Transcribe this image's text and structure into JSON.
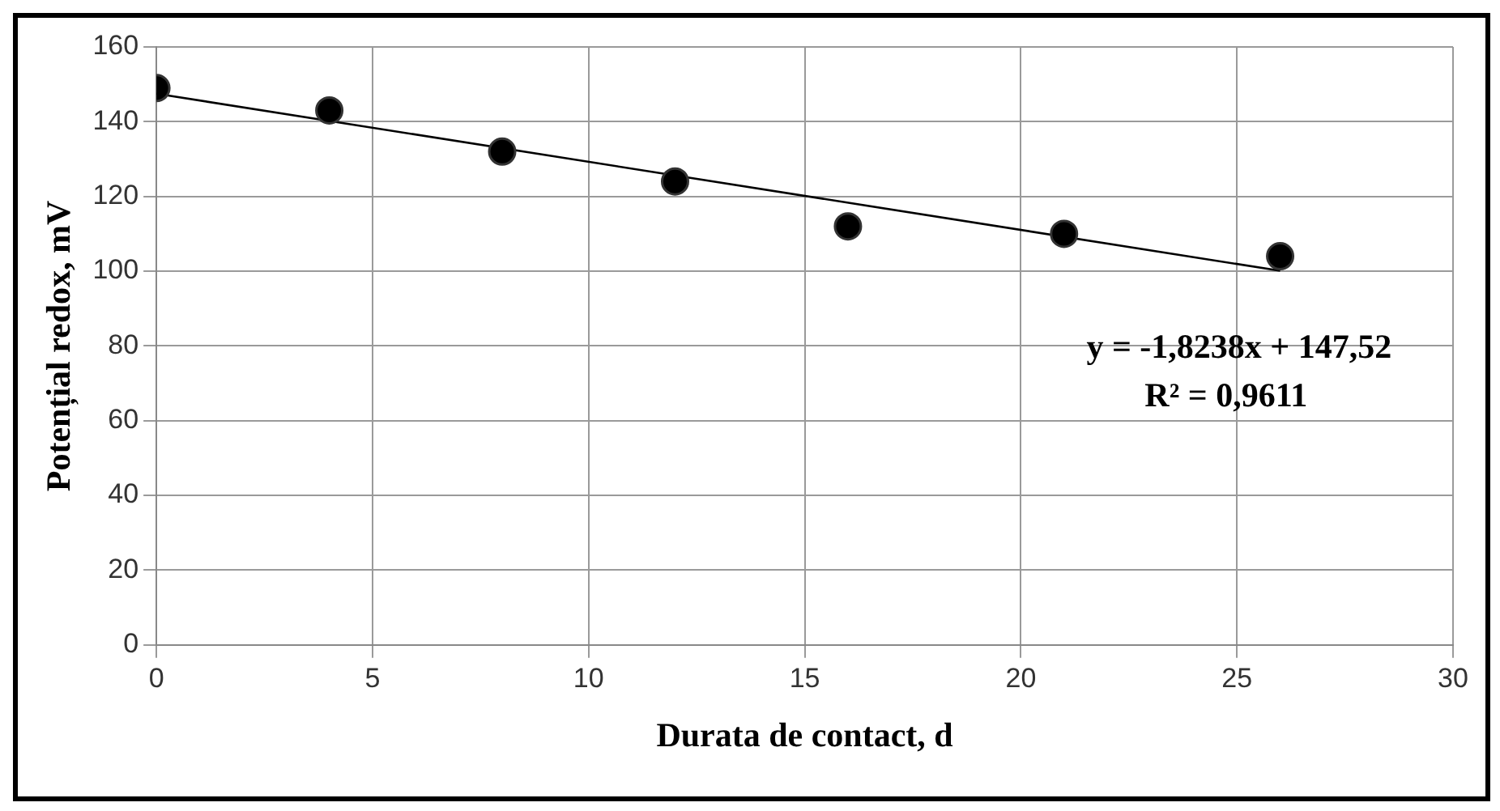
{
  "chart_data": {
    "type": "scatter",
    "xlabel": "Durata de contact, d",
    "ylabel": "Potențial redox, mV",
    "series": [
      {
        "type": "scatter",
        "color": "#000000",
        "marker": "circle",
        "x": [
          0,
          4,
          8,
          12,
          16,
          21,
          26
        ],
        "values": [
          149,
          143,
          132,
          124,
          112,
          110,
          104
        ]
      },
      {
        "type": "line",
        "color": "#000000",
        "marker": "none",
        "line_style": "solid",
        "x": [
          0,
          26
        ],
        "values": [
          147.5,
          100.1
        ]
      }
    ],
    "annotations": [
      "y = -1,8238x + 147,52",
      "R² = 0,9611"
    ],
    "xlim": [
      0,
      30
    ],
    "xticks": [
      0,
      5,
      10,
      15,
      20,
      25,
      30
    ],
    "ylim": [
      0,
      160
    ],
    "yticks": [
      0,
      20,
      40,
      60,
      80,
      100,
      120,
      140,
      160
    ],
    "grid": true,
    "legend": false
  }
}
